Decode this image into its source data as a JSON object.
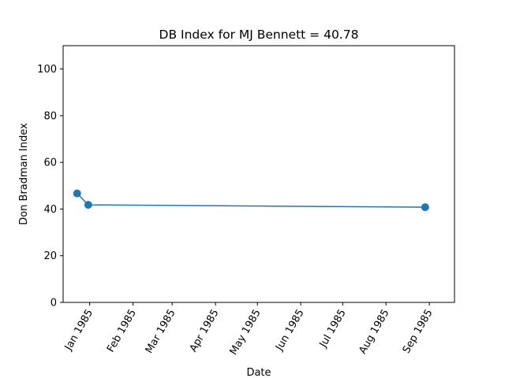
{
  "chart_data": {
    "type": "line",
    "title": "DB Index for MJ Bennett = 40.78",
    "xlabel": "Date",
    "ylabel": "Don Bradman Index",
    "x_tick_labels": [
      "Jan 1985",
      "Feb 1985",
      "Mar 1985",
      "Apr 1985",
      "May 1985",
      "Jun 1985",
      "Jul 1985",
      "Aug 1985",
      "Sep 1985"
    ],
    "y_tick_labels": [
      "0",
      "20",
      "40",
      "60",
      "80",
      "100"
    ],
    "ylim": [
      0,
      110
    ],
    "xlim": [
      "1984-12-13",
      "1985-09-19"
    ],
    "series": [
      {
        "color": "#1f77b4",
        "marker": "circle",
        "points": [
          {
            "x": "1984-12-23",
            "y": 46.7
          },
          {
            "x": "1984-12-31",
            "y": 41.8
          },
          {
            "x": "1985-08-29",
            "y": 40.78
          }
        ]
      }
    ],
    "grid": false
  }
}
